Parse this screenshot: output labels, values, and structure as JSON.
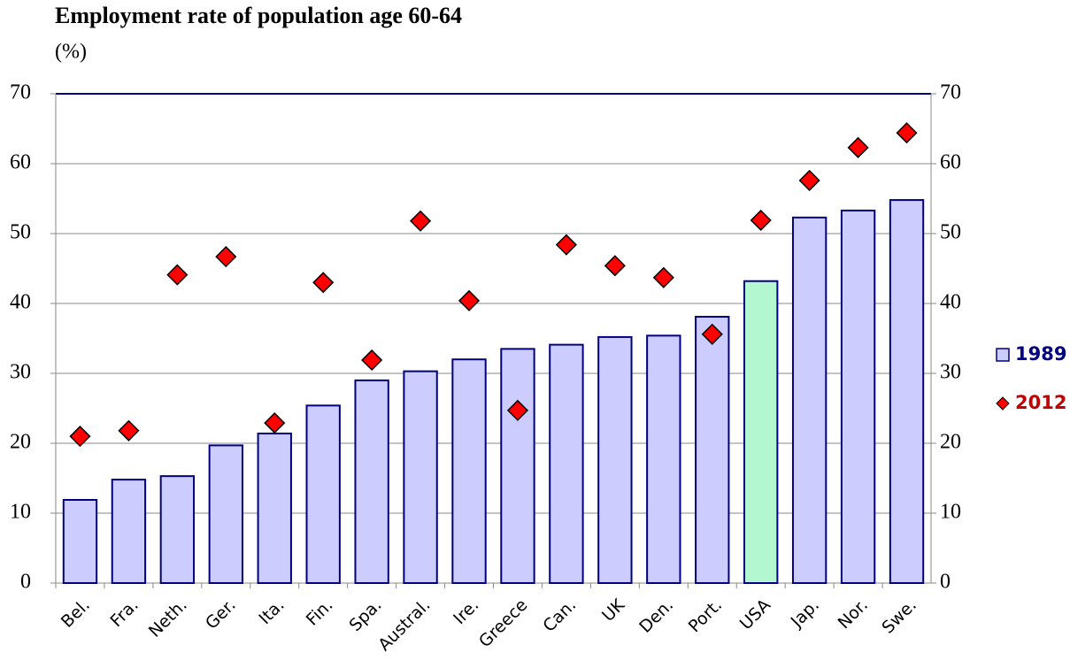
{
  "chart_data": {
    "type": "bar",
    "title": "Employment rate of population age 60-64",
    "subtitle": "(%)",
    "categories": [
      "Bel.",
      "Fra.",
      "Neth.",
      "Ger.",
      "Ita.",
      "Fin.",
      "Spa.",
      "Austral.",
      "Ire.",
      "Greece",
      "Can.",
      "UK",
      "Den.",
      "Port.",
      "USA",
      "Jap.",
      "Nor.",
      "Swe."
    ],
    "series": [
      {
        "name": "1989",
        "type": "bar",
        "color": "#ccccff",
        "colors": [
          "#ccccff",
          "#ccccff",
          "#ccccff",
          "#ccccff",
          "#ccccff",
          "#ccccff",
          "#ccccff",
          "#ccccff",
          "#ccccff",
          "#ccccff",
          "#ccccff",
          "#ccccff",
          "#ccccff",
          "#ccccff",
          "#b3f7d1",
          "#ccccff",
          "#ccccff",
          "#ccccff"
        ],
        "values": [
          11.9,
          14.8,
          15.3,
          19.7,
          21.4,
          25.4,
          29.0,
          30.3,
          32.0,
          33.5,
          34.1,
          35.2,
          35.4,
          38.1,
          43.2,
          52.3,
          53.3,
          54.8
        ]
      },
      {
        "name": "2012",
        "type": "scatter",
        "color": "#ff0000",
        "axis": "y2",
        "values": [
          21.0,
          21.8,
          44.1,
          46.7,
          22.9,
          43.0,
          31.9,
          51.8,
          40.4,
          24.7,
          48.4,
          45.4,
          43.7,
          35.6,
          51.9,
          57.6,
          62.3,
          64.4
        ]
      }
    ],
    "ylim": [
      0,
      70
    ],
    "yticks": [
      0,
      10,
      20,
      30,
      40,
      50,
      60,
      70
    ],
    "y2lim": [
      0,
      70
    ],
    "y2ticks": [
      0,
      10,
      20,
      30,
      40,
      50,
      60,
      70
    ],
    "grid": true,
    "legend": "right"
  }
}
